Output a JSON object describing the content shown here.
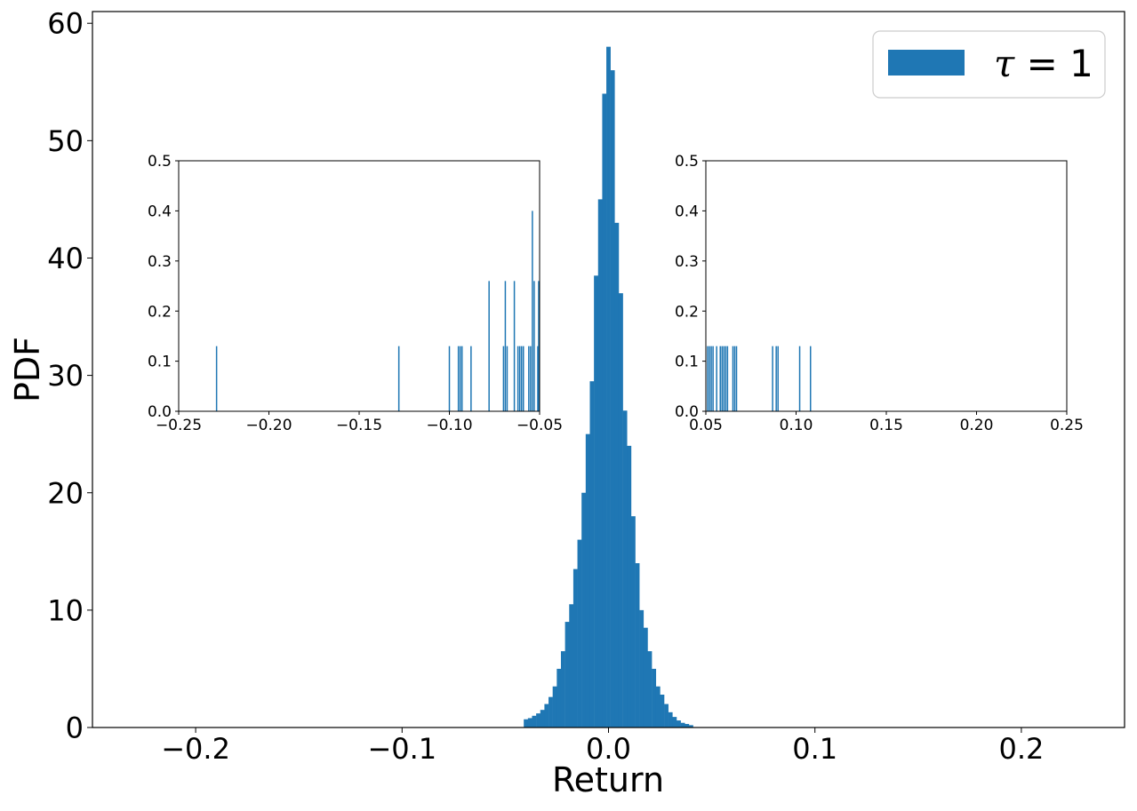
{
  "chart_data": [
    {
      "type": "bar",
      "role": "main histogram",
      "xlabel": "Return",
      "ylabel": "PDF",
      "xlim": [
        -0.25,
        0.25
      ],
      "ylim": [
        0,
        61
      ],
      "xticks": [
        -0.2,
        -0.1,
        0.0,
        0.1,
        0.2
      ],
      "xtick_labels": [
        "−0.2",
        "−0.1",
        "0.0",
        "0.1",
        "0.2"
      ],
      "yticks": [
        0,
        10,
        20,
        30,
        40,
        50,
        60
      ],
      "ytick_labels": [
        "0",
        "10",
        "20",
        "30",
        "40",
        "50",
        "60"
      ],
      "legend": {
        "position": "top-right",
        "math_label": "τ = 1",
        "math_symbol": "τ",
        "math_rest": " = 1"
      },
      "color": "#1f77b4",
      "series": [
        {
          "x": [
            -0.04,
            -0.038,
            -0.036,
            -0.034,
            -0.032,
            -0.03,
            -0.028,
            -0.026,
            -0.024,
            -0.022,
            -0.02,
            -0.018,
            -0.016,
            -0.014,
            -0.012,
            -0.01,
            -0.008,
            -0.006,
            -0.004,
            -0.002,
            0.0,
            0.002,
            0.004,
            0.006,
            0.008,
            0.01,
            0.012,
            0.014,
            0.016,
            0.018,
            0.02,
            0.022,
            0.024,
            0.026,
            0.028,
            0.03,
            0.032,
            0.034,
            0.036,
            0.038,
            0.04
          ],
          "values": [
            0.7,
            0.8,
            1.0,
            1.2,
            1.5,
            2.0,
            2.6,
            3.5,
            5.0,
            6.5,
            9.0,
            10.5,
            13.5,
            16.0,
            20.0,
            25.0,
            29.5,
            38.5,
            45.0,
            54.0,
            58.0,
            56.0,
            43.0,
            37.0,
            27.0,
            24.0,
            18.0,
            14.0,
            10.0,
            8.5,
            6.5,
            5.0,
            3.5,
            2.8,
            2.0,
            1.3,
            0.9,
            0.6,
            0.4,
            0.3,
            0.2
          ]
        }
      ]
    },
    {
      "type": "bar",
      "role": "left-tail inset",
      "xlim": [
        -0.25,
        -0.05
      ],
      "ylim": [
        0,
        0.5
      ],
      "xticks": [
        -0.25,
        -0.2,
        -0.15,
        -0.1,
        -0.05
      ],
      "xtick_labels": [
        "−0.25",
        "−0.20",
        "−0.15",
        "−0.10",
        "−0.05"
      ],
      "yticks": [
        0.0,
        0.1,
        0.2,
        0.3,
        0.4,
        0.5
      ],
      "ytick_labels": [
        "0.0",
        "0.1",
        "0.2",
        "0.3",
        "0.4",
        "0.5"
      ],
      "series": [
        {
          "x": [
            -0.229,
            -0.128,
            -0.1,
            -0.095,
            -0.094,
            -0.093,
            -0.088,
            -0.078,
            -0.07,
            -0.069,
            -0.068,
            -0.064,
            -0.062,
            -0.061,
            -0.06,
            -0.059,
            -0.056,
            -0.055,
            -0.054,
            -0.053,
            -0.051,
            -0.0505
          ],
          "values": [
            0.13,
            0.13,
            0.13,
            0.13,
            0.13,
            0.13,
            0.13,
            0.26,
            0.13,
            0.26,
            0.13,
            0.26,
            0.13,
            0.13,
            0.13,
            0.13,
            0.13,
            0.13,
            0.4,
            0.26,
            0.13,
            0.26
          ]
        }
      ]
    },
    {
      "type": "bar",
      "role": "right-tail inset",
      "xlim": [
        0.05,
        0.25
      ],
      "ylim": [
        0,
        0.5
      ],
      "xticks": [
        0.05,
        0.1,
        0.15,
        0.2,
        0.25
      ],
      "xtick_labels": [
        "0.05",
        "0.10",
        "0.15",
        "0.20",
        "0.25"
      ],
      "yticks": [
        0.0,
        0.1,
        0.2,
        0.3,
        0.4,
        0.5
      ],
      "ytick_labels": [
        "0.0",
        "0.1",
        "0.2",
        "0.3",
        "0.4",
        "0.5"
      ],
      "series": [
        {
          "x": [
            0.051,
            0.052,
            0.053,
            0.054,
            0.056,
            0.058,
            0.059,
            0.06,
            0.061,
            0.062,
            0.065,
            0.066,
            0.067,
            0.087,
            0.089,
            0.09,
            0.102,
            0.108
          ],
          "values": [
            0.13,
            0.13,
            0.13,
            0.13,
            0.13,
            0.13,
            0.13,
            0.13,
            0.13,
            0.13,
            0.13,
            0.13,
            0.13,
            0.13,
            0.13,
            0.13,
            0.13,
            0.13
          ]
        }
      ]
    }
  ]
}
